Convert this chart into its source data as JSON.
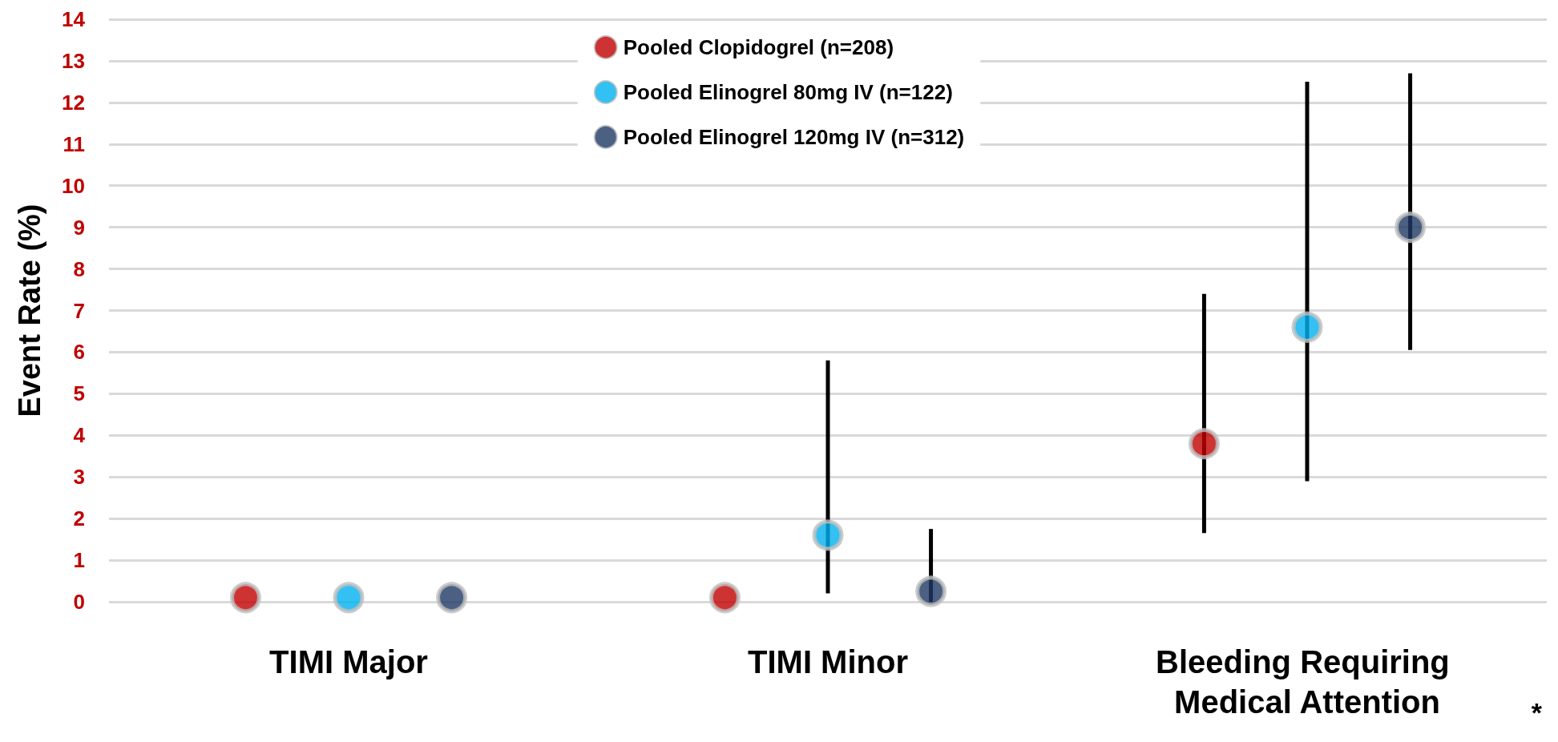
{
  "chart_data": {
    "type": "scatter",
    "ylabel": "Event Rate (%)",
    "categories": [
      "TIMI Major",
      "TIMI Minor",
      "Bleeding Requiring Medical Attention"
    ],
    "series": [
      {
        "name": "Pooled Clopidogrel (n=208)",
        "color": "#c00000",
        "values": [
          0.1,
          0.1,
          3.8
        ],
        "errors": [
          null,
          null,
          [
            1.65,
            7.4
          ]
        ]
      },
      {
        "name": "Pooled Elinogrel 80mg IV (n=122)",
        "color": "#00b0f0",
        "values": [
          0.1,
          1.6,
          6.6
        ],
        "errors": [
          null,
          [
            0.2,
            5.8
          ],
          [
            2.9,
            12.5
          ]
        ]
      },
      {
        "name": "Pooled Elinogrel 120mg IV (n=312)",
        "color": "#1f3864",
        "values": [
          0.1,
          0.25,
          9.0
        ],
        "errors": [
          null,
          [
            0.0,
            1.75
          ],
          [
            6.05,
            12.7
          ]
        ]
      }
    ],
    "ylim": [
      0,
      14
    ],
    "yticks": [
      0,
      1,
      2,
      3,
      4,
      5,
      6,
      7,
      8,
      9,
      10,
      11,
      12,
      13,
      14
    ],
    "grid": "y",
    "legend": "top",
    "marker": "circle",
    "annotations": [
      "*"
    ]
  }
}
